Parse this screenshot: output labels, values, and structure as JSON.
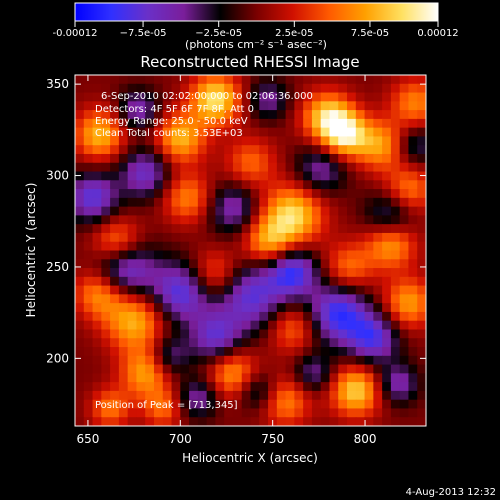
{
  "colorbar": {
    "ticks": [
      {
        "value": -0.00012,
        "label": "-0.00012"
      },
      {
        "value": -7.5e-05,
        "label": "−7.5e-05"
      },
      {
        "value": -2.5e-05,
        "label": "−2.5e-05"
      },
      {
        "value": 2.5e-05,
        "label": "2.5e-05"
      },
      {
        "value": 7.5e-05,
        "label": "7.5e-05"
      },
      {
        "value": 0.00012,
        "label": "0.00012"
      }
    ],
    "range": [
      -0.00012,
      0.00012
    ],
    "units": "(photons cm⁻² s⁻¹ asec⁻²)",
    "colormap": [
      "#0000ff",
      "#3030ff",
      "#6a30c8",
      "#7a1e9a",
      "#000000",
      "#7a0000",
      "#d01000",
      "#ff5a00",
      "#ffa000",
      "#ffe060",
      "#ffffff"
    ]
  },
  "chart_data": {
    "type": "heatmap",
    "title": "Reconstructed RHESSI Image",
    "xlabel": "Heliocentric X (arcsec)",
    "ylabel": "Heliocentric Y (arcsec)",
    "xlim": [
      643,
      833
    ],
    "ylim": [
      163,
      355
    ],
    "xticks": [
      650,
      700,
      750,
      800
    ],
    "yticks": [
      200,
      250,
      300,
      350
    ],
    "peak": [
      713,
      345
    ],
    "info": [
      "6-Sep-2010 02:02:00.000 to 02:06:36.000",
      "Detectors: 4F 5F 6F 7F 8F, Att 0",
      "Energy Range: 25.0 - 50.0 keV",
      "Clean     Total counts: 3.53E+03"
    ],
    "peak_text": "Position of Peak = [713,345]"
  },
  "footer": {
    "date": "4-Aug-2013 12:32"
  }
}
